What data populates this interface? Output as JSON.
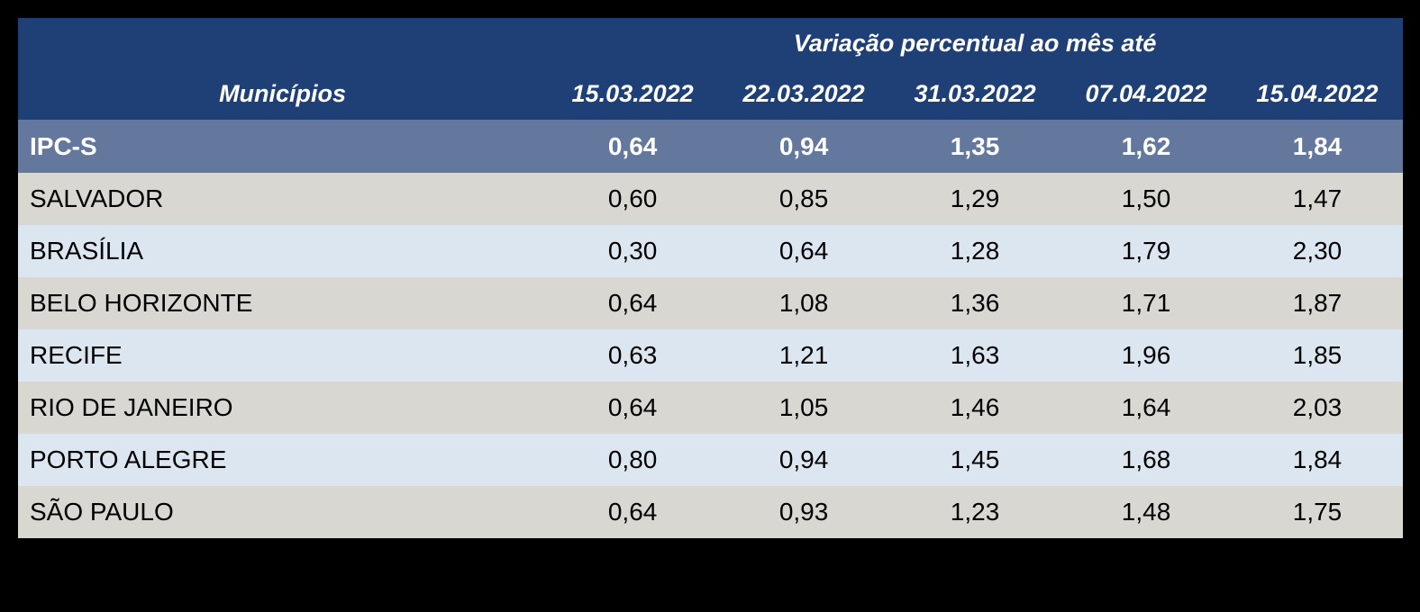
{
  "chart_data": {
    "type": "table",
    "title": "Variação percentual ao mês até",
    "row_header_label": "Municípios",
    "columns": [
      "15.03.2022",
      "22.03.2022",
      "31.03.2022",
      "07.04.2022",
      "15.04.2022"
    ],
    "rows": [
      {
        "label": "IPC-S",
        "values": [
          0.64,
          0.94,
          1.35,
          1.62,
          1.84
        ]
      },
      {
        "label": "SALVADOR",
        "values": [
          0.6,
          0.85,
          1.29,
          1.5,
          1.47
        ]
      },
      {
        "label": "BRASÍLIA",
        "values": [
          0.3,
          0.64,
          1.28,
          1.79,
          2.3
        ]
      },
      {
        "label": "BELO HORIZONTE",
        "values": [
          0.64,
          1.08,
          1.36,
          1.71,
          1.87
        ]
      },
      {
        "label": "RECIFE",
        "values": [
          0.63,
          1.21,
          1.63,
          1.96,
          1.85
        ]
      },
      {
        "label": "RIO DE JANEIRO",
        "values": [
          0.64,
          1.05,
          1.46,
          1.64,
          2.03
        ]
      },
      {
        "label": "PORTO ALEGRE",
        "values": [
          0.8,
          0.94,
          1.45,
          1.68,
          1.84
        ]
      },
      {
        "label": "SÃO PAULO",
        "values": [
          0.64,
          0.93,
          1.23,
          1.48,
          1.75
        ]
      }
    ],
    "layout": {
      "highlighted_row": "IPC-S",
      "decimal_separator": ",",
      "grid": false
    }
  },
  "table": {
    "header": {
      "group_title": "Variação percentual ao mês até",
      "municipios_label": "Municípios",
      "date_columns": [
        "15.03.2022",
        "22.03.2022",
        "31.03.2022",
        "07.04.2022",
        "15.04.2022"
      ]
    },
    "rows": [
      {
        "label": "IPC-S",
        "values": [
          "0,64",
          "0,94",
          "1,35",
          "1,62",
          "1,84"
        ]
      },
      {
        "label": "SALVADOR",
        "values": [
          "0,60",
          "0,85",
          "1,29",
          "1,50",
          "1,47"
        ]
      },
      {
        "label": "BRASÍLIA",
        "values": [
          "0,30",
          "0,64",
          "1,28",
          "1,79",
          "2,30"
        ]
      },
      {
        "label": "BELO HORIZONTE",
        "values": [
          "0,64",
          "1,08",
          "1,36",
          "1,71",
          "1,87"
        ]
      },
      {
        "label": "RECIFE",
        "values": [
          "0,63",
          "1,21",
          "1,63",
          "1,96",
          "1,85"
        ]
      },
      {
        "label": "RIO DE JANEIRO",
        "values": [
          "0,64",
          "1,05",
          "1,46",
          "1,64",
          "2,03"
        ]
      },
      {
        "label": "PORTO ALEGRE",
        "values": [
          "0,80",
          "0,94",
          "1,45",
          "1,68",
          "1,84"
        ]
      },
      {
        "label": "SÃO PAULO",
        "values": [
          "0,64",
          "0,93",
          "1,23",
          "1,48",
          "1,75"
        ]
      }
    ],
    "colors": {
      "page_background": "#000000",
      "header_background": "#1F3F77",
      "header_text": "#FFFFFF",
      "ipcs_row_background": "#64789E",
      "ipcs_row_text": "#FFFFFF",
      "stripe_gray": "#D8D7D2",
      "stripe_blue": "#DCE6F0",
      "body_text": "#000000"
    }
  }
}
